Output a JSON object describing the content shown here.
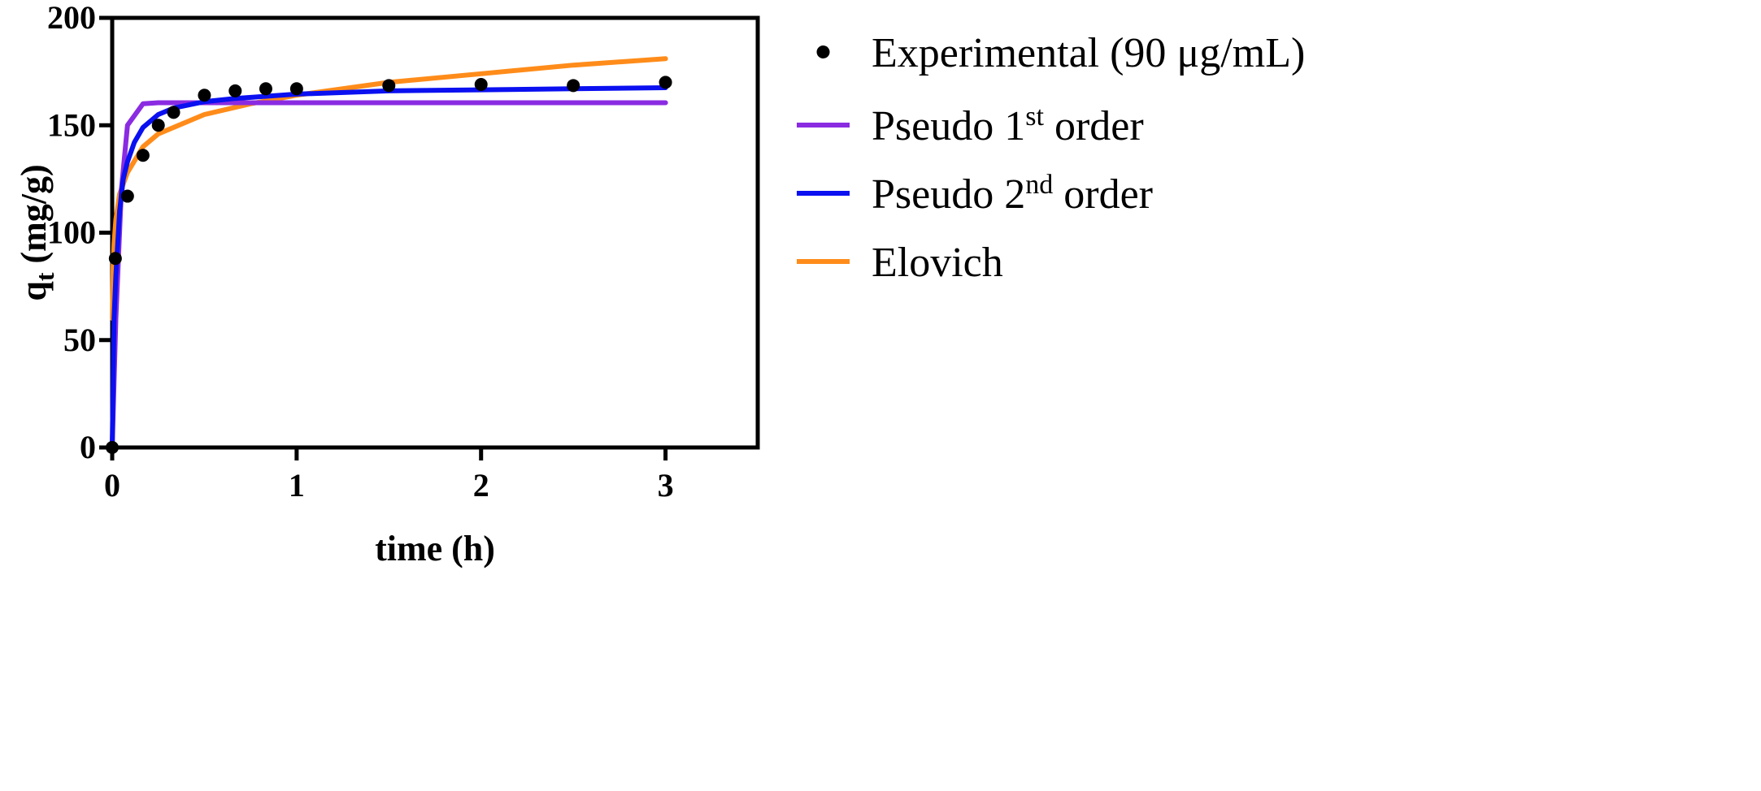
{
  "chart_data": {
    "type": "line",
    "xlabel": "time (h)",
    "ylabel": {
      "main": "q",
      "sub": "t",
      "unit": " (mg/g)"
    },
    "xlim": [
      0,
      3.5
    ],
    "ylim": [
      0,
      200
    ],
    "x_ticks": [
      0,
      1,
      2,
      3
    ],
    "y_ticks": [
      0,
      50,
      100,
      150,
      200
    ],
    "grid": false,
    "legend_position": "right",
    "legend": [
      {
        "kind": "marker",
        "label": "Experimental (90 μg/mL)"
      },
      {
        "kind": "line",
        "label_pre": "Pseudo 1",
        "label_sup": "st",
        "label_post": " order",
        "color": "#8a2be2"
      },
      {
        "kind": "line",
        "label_pre": "Pseudo 2",
        "label_sup": "nd",
        "label_post": " order",
        "color": "#0a10f0"
      },
      {
        "kind": "line",
        "label_pre": "Elovich",
        "label_sup": "",
        "label_post": "",
        "color": "#ff8c1a"
      }
    ],
    "series": [
      {
        "name": "Experimental (90 μg/mL)",
        "style": "scatter",
        "color": "#000000",
        "x": [
          0,
          0.017,
          0.083,
          0.167,
          0.25,
          0.333,
          0.5,
          0.667,
          0.833,
          1.0,
          1.5,
          2.0,
          2.5,
          3.0
        ],
        "y": [
          0,
          88,
          117,
          136,
          150,
          156,
          164,
          166,
          167,
          167,
          168.5,
          169,
          168.5,
          170
        ]
      },
      {
        "name": "Pseudo 1st order",
        "style": "line",
        "color": "#8a2be2",
        "x": [
          0,
          0.02,
          0.05,
          0.083,
          0.167,
          0.25,
          0.5,
          1.0,
          2.0,
          3.0
        ],
        "y": [
          0,
          60,
          120,
          150,
          160,
          160.5,
          160.5,
          160.5,
          160.5,
          160.5
        ]
      },
      {
        "name": "Pseudo 2nd order",
        "style": "line",
        "color": "#0a10f0",
        "x": [
          0,
          0.01,
          0.02,
          0.04,
          0.06,
          0.083,
          0.12,
          0.167,
          0.25,
          0.333,
          0.5,
          0.667,
          1.0,
          1.5,
          2.0,
          2.5,
          3.0
        ],
        "y": [
          0,
          60,
          80,
          110,
          125,
          133,
          142,
          149,
          155,
          158,
          161,
          162.5,
          164.5,
          166,
          166.5,
          167,
          167.5
        ]
      },
      {
        "name": "Elovich",
        "style": "line",
        "color": "#ff8c1a",
        "x": [
          0.001,
          0.005,
          0.01,
          0.02,
          0.04,
          0.083,
          0.167,
          0.25,
          0.5,
          0.75,
          1.0,
          1.5,
          2.0,
          2.5,
          3.0
        ],
        "y": [
          60,
          84,
          95,
          106,
          118,
          128,
          140,
          146,
          155,
          160,
          164,
          170,
          174,
          178,
          181
        ]
      }
    ]
  }
}
